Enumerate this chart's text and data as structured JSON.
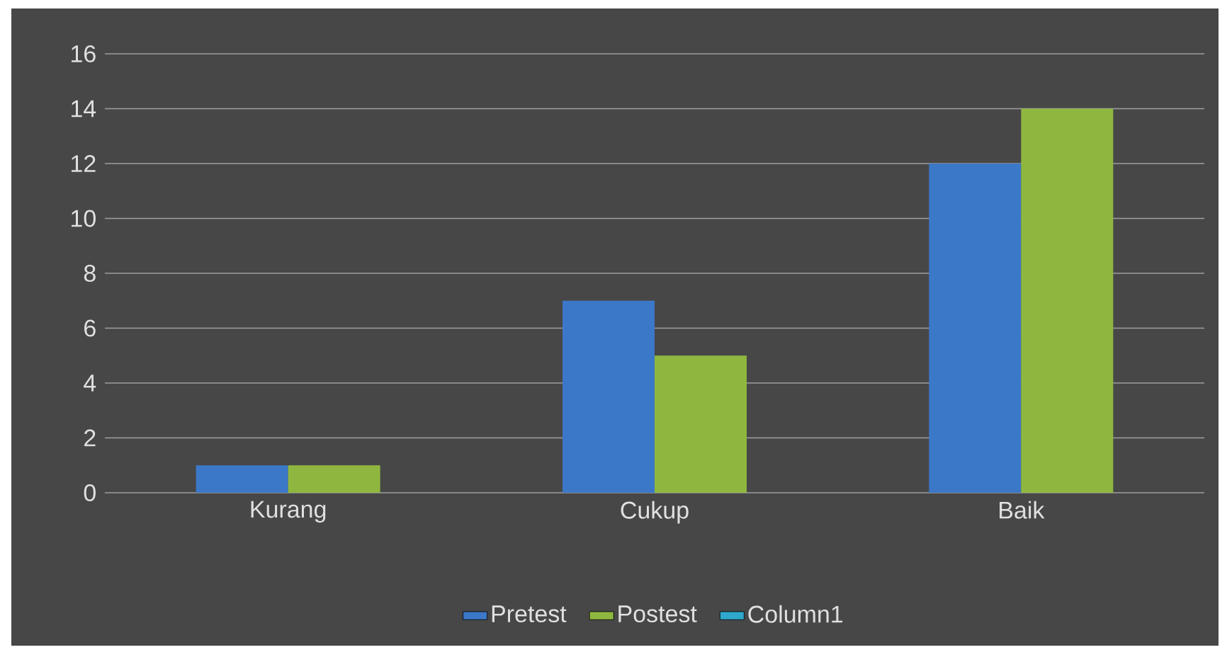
{
  "chart_data": {
    "type": "bar",
    "categories": [
      "Kurang",
      "Cukup",
      "Baik"
    ],
    "series": [
      {
        "name": "Pretest",
        "color": "#3c78c8",
        "values": [
          1,
          7,
          12
        ]
      },
      {
        "name": "Postest",
        "color": "#8fb740",
        "values": [
          1,
          5,
          14
        ]
      },
      {
        "name": "Column1",
        "color": "#2fa8cc",
        "values": [
          null,
          null,
          null
        ]
      }
    ],
    "ylim": [
      0,
      16
    ],
    "yticks": [
      0,
      2,
      4,
      6,
      8,
      10,
      12,
      14,
      16
    ],
    "grid": "y",
    "legend": "bottom"
  }
}
